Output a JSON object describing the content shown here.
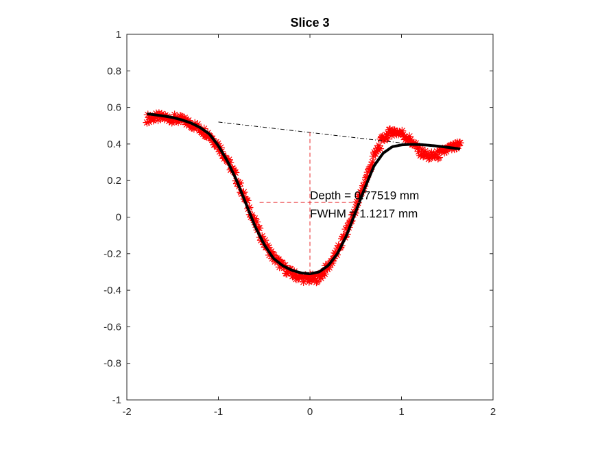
{
  "chart_data": {
    "type": "line",
    "title": "Slice 3",
    "xlabel": "",
    "ylabel": "",
    "xlim": [
      -2,
      2
    ],
    "ylim": [
      -1,
      1
    ],
    "x_ticks": [
      "-2",
      "-1",
      "0",
      "1",
      "2"
    ],
    "y_ticks": [
      "-1",
      "-0.8",
      "-0.6",
      "-0.4",
      "-0.2",
      "0",
      "0.2",
      "0.4",
      "0.6",
      "0.8",
      "1"
    ],
    "colors": {
      "raw": "#ff0000",
      "fit": "#000000",
      "baseline": "#000000",
      "measure": "#e8282b",
      "axis": "#262626"
    },
    "series": [
      {
        "name": "raw data",
        "style": "red asterisk markers",
        "x": [
          -1.78,
          -1.7,
          -1.6,
          -1.5,
          -1.4,
          -1.3,
          -1.2,
          -1.1,
          -1.0,
          -0.9,
          -0.8,
          -0.7,
          -0.6,
          -0.5,
          -0.4,
          -0.3,
          -0.2,
          -0.1,
          0.0,
          0.1,
          0.2,
          0.3,
          0.4,
          0.5,
          0.6,
          0.7,
          0.8,
          0.9,
          1.0,
          1.1,
          1.2,
          1.3,
          1.4,
          1.5,
          1.64
        ],
        "y": [
          0.54,
          0.545,
          0.545,
          0.54,
          0.53,
          0.51,
          0.485,
          0.45,
          0.39,
          0.31,
          0.21,
          0.09,
          -0.03,
          -0.14,
          -0.22,
          -0.27,
          -0.31,
          -0.33,
          -0.34,
          -0.33,
          -0.27,
          -0.19,
          -0.08,
          0.05,
          0.19,
          0.33,
          0.43,
          0.47,
          0.46,
          0.42,
          0.36,
          0.33,
          0.34,
          0.37,
          0.39
        ]
      },
      {
        "name": "fit",
        "style": "thick black line",
        "x": [
          -1.78,
          -1.7,
          -1.6,
          -1.5,
          -1.4,
          -1.3,
          -1.2,
          -1.1,
          -1.0,
          -0.9,
          -0.8,
          -0.7,
          -0.6,
          -0.5,
          -0.4,
          -0.3,
          -0.2,
          -0.1,
          0.0,
          0.1,
          0.2,
          0.3,
          0.4,
          0.5,
          0.6,
          0.7,
          0.8,
          0.9,
          1.0,
          1.1,
          1.2,
          1.3,
          1.4,
          1.5,
          1.64
        ],
        "y": [
          0.565,
          0.56,
          0.553,
          0.545,
          0.532,
          0.515,
          0.49,
          0.455,
          0.39,
          0.305,
          0.2,
          0.075,
          -0.05,
          -0.15,
          -0.225,
          -0.265,
          -0.29,
          -0.305,
          -0.31,
          -0.3,
          -0.265,
          -0.2,
          -0.1,
          0.03,
          0.16,
          0.28,
          0.35,
          0.385,
          0.395,
          0.398,
          0.397,
          0.393,
          0.388,
          0.382,
          0.373
        ]
      }
    ],
    "baseline": {
      "x": [
        -1.0,
        1.1
      ],
      "y": [
        0.52,
        0.4
      ]
    },
    "depth_line": {
      "x": 0,
      "y_top": 0.465,
      "y_bottom": -0.31
    },
    "fwhm_line": {
      "x": [
        -0.55,
        0.55
      ],
      "y": 0.08
    },
    "annotations": [
      {
        "text": "Depth = 0.77519 mm",
        "x": 0.0,
        "y": 0.12
      },
      {
        "text": "FWHM = 1.1217 mm",
        "x": 0.0,
        "y": 0.02
      }
    ]
  }
}
